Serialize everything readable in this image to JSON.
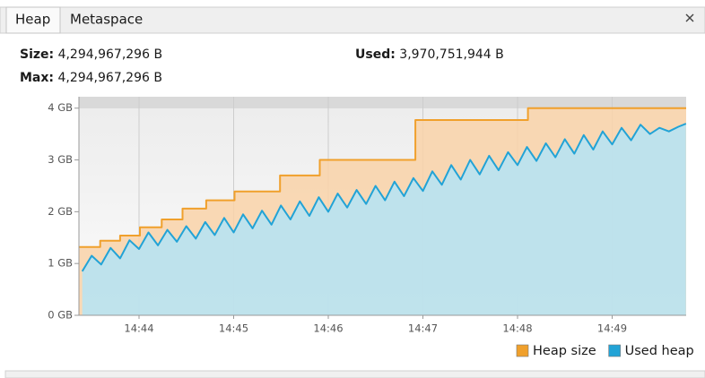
{
  "tabs": [
    "Heap",
    "Metaspace"
  ],
  "info": [
    {
      "label": "Size:",
      "value": "4,294,967,296 B"
    },
    {
      "label": "Used:",
      "value": "3,970,751,944 B"
    },
    {
      "label": "Max:",
      "value": "4,294,967,296 B"
    }
  ],
  "chart_data": {
    "type": "area",
    "xlim": [
      883.365,
      889.782
    ],
    "xticks": [
      {
        "value": 884,
        "label": "14:44"
      },
      {
        "value": 885,
        "label": "14:45"
      },
      {
        "value": 886,
        "label": "14:46"
      },
      {
        "value": 887,
        "label": "14:47"
      },
      {
        "value": 888,
        "label": "14:48"
      },
      {
        "value": 889,
        "label": "14:49"
      }
    ],
    "ylim": [
      0,
      4.22
    ],
    "yticks": [
      {
        "value": 0,
        "label": "0 GB"
      },
      {
        "value": 1,
        "label": "1 GB"
      },
      {
        "value": 2,
        "label": "2 GB"
      },
      {
        "value": 3,
        "label": "3 GB"
      },
      {
        "value": 4,
        "label": "4 GB"
      }
    ],
    "grid": true,
    "legend": "bottom-right",
    "series": [
      {
        "name": "Heap size",
        "color": "#f0a02c",
        "fill": "#f9d2a8",
        "x": [
          883.365,
          883.59,
          883.59,
          883.8,
          883.8,
          884.01,
          884.01,
          884.24,
          884.24,
          884.46,
          884.46,
          884.71,
          884.71,
          885.01,
          885.01,
          885.49,
          885.49,
          885.91,
          885.91,
          886.92,
          886.92,
          888.11,
          888.11,
          889.782
        ],
        "values": [
          1.32,
          1.32,
          1.44,
          1.44,
          1.54,
          1.54,
          1.7,
          1.7,
          1.85,
          1.85,
          2.06,
          2.06,
          2.22,
          2.22,
          2.39,
          2.39,
          2.7,
          2.7,
          3.0,
          3.0,
          3.77,
          3.77,
          4.0,
          4.0
        ]
      },
      {
        "name": "Used heap",
        "color": "#22a3d6",
        "fill": "#b4e4f6",
        "x": [
          883.4,
          883.5,
          883.6,
          883.7,
          883.8,
          883.9,
          884.0,
          884.1,
          884.2,
          884.3,
          884.4,
          884.5,
          884.6,
          884.7,
          884.8,
          884.9,
          885.0,
          885.1,
          885.2,
          885.3,
          885.4,
          885.5,
          885.6,
          885.7,
          885.8,
          885.9,
          886.0,
          886.1,
          886.2,
          886.3,
          886.4,
          886.5,
          886.6,
          886.7,
          886.8,
          886.9,
          887.0,
          887.1,
          887.2,
          887.3,
          887.4,
          887.5,
          887.6,
          887.7,
          887.8,
          887.9,
          888.0,
          888.1,
          888.2,
          888.3,
          888.4,
          888.5,
          888.6,
          888.7,
          888.8,
          888.9,
          889.0,
          889.1,
          889.2,
          889.3,
          889.4,
          889.5,
          889.6,
          889.7,
          889.78
        ],
        "values": [
          0.85,
          1.15,
          0.98,
          1.3,
          1.1,
          1.45,
          1.28,
          1.6,
          1.35,
          1.65,
          1.42,
          1.72,
          1.48,
          1.8,
          1.55,
          1.88,
          1.6,
          1.95,
          1.68,
          2.02,
          1.75,
          2.12,
          1.85,
          2.2,
          1.92,
          2.28,
          2.0,
          2.35,
          2.08,
          2.42,
          2.15,
          2.5,
          2.22,
          2.58,
          2.3,
          2.65,
          2.4,
          2.78,
          2.52,
          2.9,
          2.62,
          3.0,
          2.72,
          3.08,
          2.8,
          3.15,
          2.9,
          3.25,
          2.98,
          3.32,
          3.05,
          3.4,
          3.12,
          3.48,
          3.2,
          3.55,
          3.3,
          3.62,
          3.38,
          3.68,
          3.5,
          3.62,
          3.55,
          3.64,
          3.7
        ]
      }
    ]
  }
}
